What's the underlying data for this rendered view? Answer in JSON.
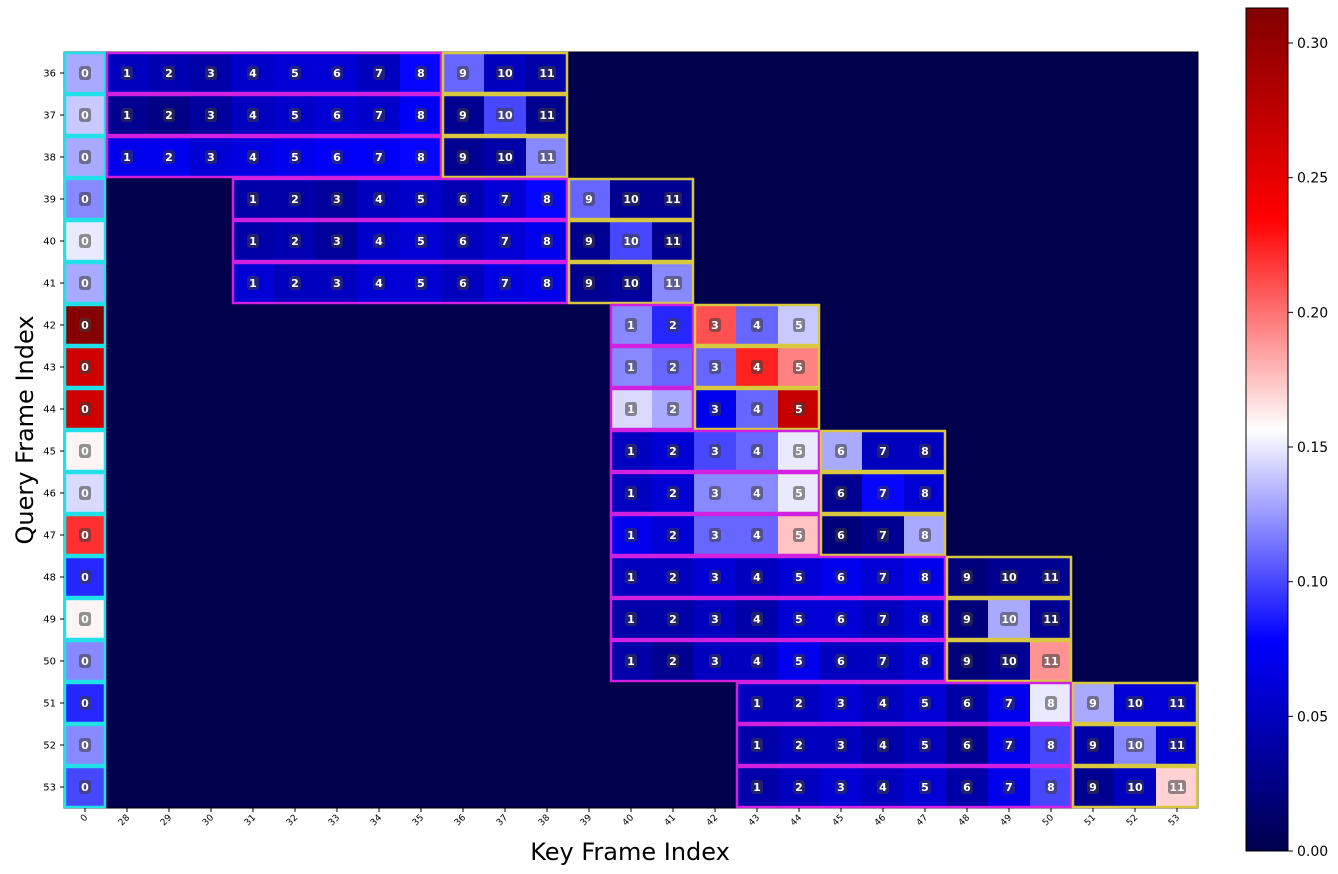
{
  "chart_data": {
    "type": "heatmap",
    "title": "",
    "xlabel": "Key Frame Index",
    "ylabel": "Query Frame Index",
    "x_categories": [
      "0",
      "28",
      "29",
      "30",
      "31",
      "32",
      "33",
      "34",
      "35",
      "36",
      "37",
      "38",
      "39",
      "40",
      "41",
      "42",
      "43",
      "44",
      "45",
      "46",
      "47",
      "48",
      "49",
      "50",
      "51",
      "52",
      "53"
    ],
    "y_categories": [
      "36",
      "37",
      "38",
      "39",
      "40",
      "41",
      "42",
      "43",
      "44",
      "45",
      "46",
      "47",
      "48",
      "49",
      "50",
      "51",
      "52",
      "53"
    ],
    "colorbar": {
      "vmin": 0.0,
      "vmax": 0.313,
      "ticks": [
        0.0,
        0.05,
        0.1,
        0.15,
        0.2,
        0.25,
        0.3
      ],
      "tick_labels": [
        "0.00",
        "0.05",
        "0.10",
        "0.15",
        "0.20",
        "0.25",
        "0.30"
      ],
      "colormap": "seismic"
    },
    "background_value": 0.0,
    "cells": [
      {
        "row": "36",
        "start_col": "0",
        "labels": [
          0
        ],
        "values": [
          0.13
        ],
        "box": "cyan"
      },
      {
        "row": "36",
        "start_col": "28",
        "labels": [
          1,
          2,
          3,
          4,
          5,
          6,
          7,
          8
        ],
        "values": [
          0.05,
          0.045,
          0.04,
          0.055,
          0.06,
          0.06,
          0.05,
          0.08
        ],
        "box": "magenta"
      },
      {
        "row": "36",
        "start_col": "36",
        "labels": [
          9,
          10,
          11
        ],
        "values": [
          0.11,
          0.05,
          0.04
        ],
        "box": "yellow"
      },
      {
        "row": "37",
        "start_col": "0",
        "labels": [
          0
        ],
        "values": [
          0.14
        ],
        "box": "cyan"
      },
      {
        "row": "37",
        "start_col": "28",
        "labels": [
          1,
          2,
          3,
          4,
          5,
          6,
          7,
          8
        ],
        "values": [
          0.03,
          0.025,
          0.035,
          0.05,
          0.055,
          0.06,
          0.055,
          0.075
        ],
        "box": "magenta"
      },
      {
        "row": "37",
        "start_col": "36",
        "labels": [
          9,
          10,
          11
        ],
        "values": [
          0.03,
          0.1,
          0.03
        ],
        "box": "yellow"
      },
      {
        "row": "38",
        "start_col": "0",
        "labels": [
          0
        ],
        "values": [
          0.13
        ],
        "box": "cyan"
      },
      {
        "row": "38",
        "start_col": "28",
        "labels": [
          1,
          2,
          3,
          4,
          5,
          6,
          7,
          8
        ],
        "values": [
          0.07,
          0.07,
          0.06,
          0.065,
          0.07,
          0.075,
          0.075,
          0.08
        ],
        "box": "magenta"
      },
      {
        "row": "38",
        "start_col": "36",
        "labels": [
          9,
          10,
          11
        ],
        "values": [
          0.03,
          0.04,
          0.12
        ],
        "box": "yellow"
      },
      {
        "row": "39",
        "start_col": "0",
        "labels": [
          0
        ],
        "values": [
          0.12
        ],
        "box": "cyan"
      },
      {
        "row": "39",
        "start_col": "31",
        "labels": [
          1,
          2,
          3,
          4,
          5,
          6,
          7,
          8
        ],
        "values": [
          0.04,
          0.04,
          0.035,
          0.05,
          0.055,
          0.045,
          0.06,
          0.08
        ],
        "box": "magenta"
      },
      {
        "row": "39",
        "start_col": "39",
        "labels": [
          9,
          10,
          11
        ],
        "values": [
          0.11,
          0.03,
          0.03
        ],
        "box": "yellow"
      },
      {
        "row": "40",
        "start_col": "0",
        "labels": [
          0
        ],
        "values": [
          0.15
        ],
        "box": "cyan"
      },
      {
        "row": "40",
        "start_col": "31",
        "labels": [
          1,
          2,
          3,
          4,
          5,
          6,
          7,
          8
        ],
        "values": [
          0.04,
          0.045,
          0.035,
          0.055,
          0.06,
          0.05,
          0.06,
          0.07
        ],
        "box": "magenta"
      },
      {
        "row": "40",
        "start_col": "39",
        "labels": [
          9,
          10,
          11
        ],
        "values": [
          0.03,
          0.1,
          0.03
        ],
        "box": "yellow"
      },
      {
        "row": "41",
        "start_col": "0",
        "labels": [
          0
        ],
        "values": [
          0.13
        ],
        "box": "cyan"
      },
      {
        "row": "41",
        "start_col": "31",
        "labels": [
          1,
          2,
          3,
          4,
          5,
          6,
          7,
          8
        ],
        "values": [
          0.06,
          0.05,
          0.05,
          0.06,
          0.06,
          0.05,
          0.065,
          0.07
        ],
        "box": "magenta"
      },
      {
        "row": "41",
        "start_col": "39",
        "labels": [
          9,
          10,
          11
        ],
        "values": [
          0.03,
          0.035,
          0.12
        ],
        "box": "yellow"
      },
      {
        "row": "42",
        "start_col": "0",
        "labels": [
          0
        ],
        "values": [
          0.31
        ],
        "box": "cyan"
      },
      {
        "row": "42",
        "start_col": "40",
        "labels": [
          1,
          2
        ],
        "values": [
          0.12,
          0.09
        ],
        "box": "magenta"
      },
      {
        "row": "42",
        "start_col": "42",
        "labels": [
          3,
          4,
          5
        ],
        "values": [
          0.21,
          0.11,
          0.14
        ],
        "box": "yellow"
      },
      {
        "row": "43",
        "start_col": "0",
        "labels": [
          0
        ],
        "values": [
          0.265
        ],
        "box": "cyan"
      },
      {
        "row": "43",
        "start_col": "40",
        "labels": [
          1,
          2
        ],
        "values": [
          0.12,
          0.11
        ],
        "box": "magenta"
      },
      {
        "row": "43",
        "start_col": "42",
        "labels": [
          3,
          4,
          5
        ],
        "values": [
          0.11,
          0.225,
          0.195
        ],
        "box": "yellow"
      },
      {
        "row": "44",
        "start_col": "0",
        "labels": [
          0
        ],
        "values": [
          0.265
        ],
        "box": "cyan"
      },
      {
        "row": "44",
        "start_col": "40",
        "labels": [
          1,
          2
        ],
        "values": [
          0.145,
          0.13
        ],
        "box": "magenta"
      },
      {
        "row": "44",
        "start_col": "42",
        "labels": [
          3,
          4,
          5
        ],
        "values": [
          0.07,
          0.11,
          0.27
        ],
        "box": "yellow"
      },
      {
        "row": "45",
        "start_col": "0",
        "labels": [
          0
        ],
        "values": [
          0.16
        ],
        "box": "cyan"
      },
      {
        "row": "45",
        "start_col": "40",
        "labels": [
          1,
          2,
          3,
          4,
          5
        ],
        "values": [
          0.05,
          0.06,
          0.1,
          0.11,
          0.15
        ],
        "box": "magenta"
      },
      {
        "row": "45",
        "start_col": "45",
        "labels": [
          6,
          7,
          8
        ],
        "values": [
          0.13,
          0.05,
          0.05
        ],
        "box": "yellow"
      },
      {
        "row": "46",
        "start_col": "0",
        "labels": [
          0
        ],
        "values": [
          0.145
        ],
        "box": "cyan"
      },
      {
        "row": "46",
        "start_col": "40",
        "labels": [
          1,
          2,
          3,
          4,
          5
        ],
        "values": [
          0.05,
          0.06,
          0.12,
          0.12,
          0.15
        ],
        "box": "magenta"
      },
      {
        "row": "46",
        "start_col": "45",
        "labels": [
          6,
          7,
          8
        ],
        "values": [
          0.03,
          0.08,
          0.06
        ],
        "box": "yellow"
      },
      {
        "row": "47",
        "start_col": "0",
        "labels": [
          0
        ],
        "values": [
          0.22
        ],
        "box": "cyan"
      },
      {
        "row": "47",
        "start_col": "40",
        "labels": [
          1,
          2,
          3,
          4,
          5
        ],
        "values": [
          0.07,
          0.06,
          0.11,
          0.11,
          0.175
        ],
        "box": "magenta"
      },
      {
        "row": "47",
        "start_col": "45",
        "labels": [
          6,
          7,
          8
        ],
        "values": [
          0.02,
          0.03,
          0.13
        ],
        "box": "yellow"
      },
      {
        "row": "48",
        "start_col": "0",
        "labels": [
          0
        ],
        "values": [
          0.09
        ],
        "box": "cyan"
      },
      {
        "row": "48",
        "start_col": "40",
        "labels": [
          1,
          2,
          3,
          4,
          5,
          6,
          7,
          8
        ],
        "values": [
          0.05,
          0.05,
          0.06,
          0.05,
          0.06,
          0.07,
          0.06,
          0.07
        ],
        "box": "magenta"
      },
      {
        "row": "48",
        "start_col": "48",
        "labels": [
          9,
          10,
          11
        ],
        "values": [
          0.02,
          0.03,
          0.03
        ],
        "box": "yellow"
      },
      {
        "row": "49",
        "start_col": "0",
        "labels": [
          0
        ],
        "values": [
          0.16
        ],
        "box": "cyan"
      },
      {
        "row": "49",
        "start_col": "40",
        "labels": [
          1,
          2,
          3,
          4,
          5,
          6,
          7,
          8
        ],
        "values": [
          0.04,
          0.04,
          0.05,
          0.04,
          0.06,
          0.06,
          0.05,
          0.06
        ],
        "box": "magenta"
      },
      {
        "row": "49",
        "start_col": "48",
        "labels": [
          9,
          10,
          11
        ],
        "values": [
          0.02,
          0.13,
          0.03
        ],
        "box": "yellow"
      },
      {
        "row": "50",
        "start_col": "0",
        "labels": [
          0
        ],
        "values": [
          0.12
        ],
        "box": "cyan"
      },
      {
        "row": "50",
        "start_col": "40",
        "labels": [
          1,
          2,
          3,
          4,
          5,
          6,
          7,
          8
        ],
        "values": [
          0.04,
          0.03,
          0.05,
          0.05,
          0.07,
          0.05,
          0.05,
          0.06
        ],
        "box": "magenta"
      },
      {
        "row": "50",
        "start_col": "48",
        "labels": [
          9,
          10,
          11
        ],
        "values": [
          0.02,
          0.03,
          0.19
        ],
        "box": "yellow"
      },
      {
        "row": "51",
        "start_col": "0",
        "labels": [
          0
        ],
        "values": [
          0.09
        ],
        "box": "cyan"
      },
      {
        "row": "51",
        "start_col": "43",
        "labels": [
          1,
          2,
          3,
          4,
          5,
          6,
          7,
          8
        ],
        "values": [
          0.05,
          0.05,
          0.06,
          0.05,
          0.06,
          0.04,
          0.07,
          0.15
        ],
        "box": "magenta"
      },
      {
        "row": "51",
        "start_col": "51",
        "labels": [
          9,
          10,
          11
        ],
        "values": [
          0.13,
          0.06,
          0.06
        ],
        "box": "yellow"
      },
      {
        "row": "52",
        "start_col": "0",
        "labels": [
          0
        ],
        "values": [
          0.12
        ],
        "box": "cyan"
      },
      {
        "row": "52",
        "start_col": "43",
        "labels": [
          1,
          2,
          3,
          4,
          5,
          6,
          7,
          8
        ],
        "values": [
          0.04,
          0.05,
          0.05,
          0.04,
          0.05,
          0.03,
          0.07,
          0.1
        ],
        "box": "magenta"
      },
      {
        "row": "52",
        "start_col": "51",
        "labels": [
          9,
          10,
          11
        ],
        "values": [
          0.04,
          0.12,
          0.06
        ],
        "box": "yellow"
      },
      {
        "row": "53",
        "start_col": "0",
        "labels": [
          0
        ],
        "values": [
          0.1
        ],
        "box": "cyan"
      },
      {
        "row": "53",
        "start_col": "43",
        "labels": [
          1,
          2,
          3,
          4,
          5,
          6,
          7,
          8
        ],
        "values": [
          0.04,
          0.05,
          0.06,
          0.05,
          0.06,
          0.04,
          0.07,
          0.1
        ],
        "box": "magenta"
      },
      {
        "row": "53",
        "start_col": "51",
        "labels": [
          9,
          10,
          11
        ],
        "values": [
          0.03,
          0.05,
          0.17
        ],
        "box": "yellow"
      }
    ],
    "box_colors": {
      "cyan": "#22e0e8",
      "magenta": "#d020e0",
      "yellow": "#d8c840"
    }
  }
}
